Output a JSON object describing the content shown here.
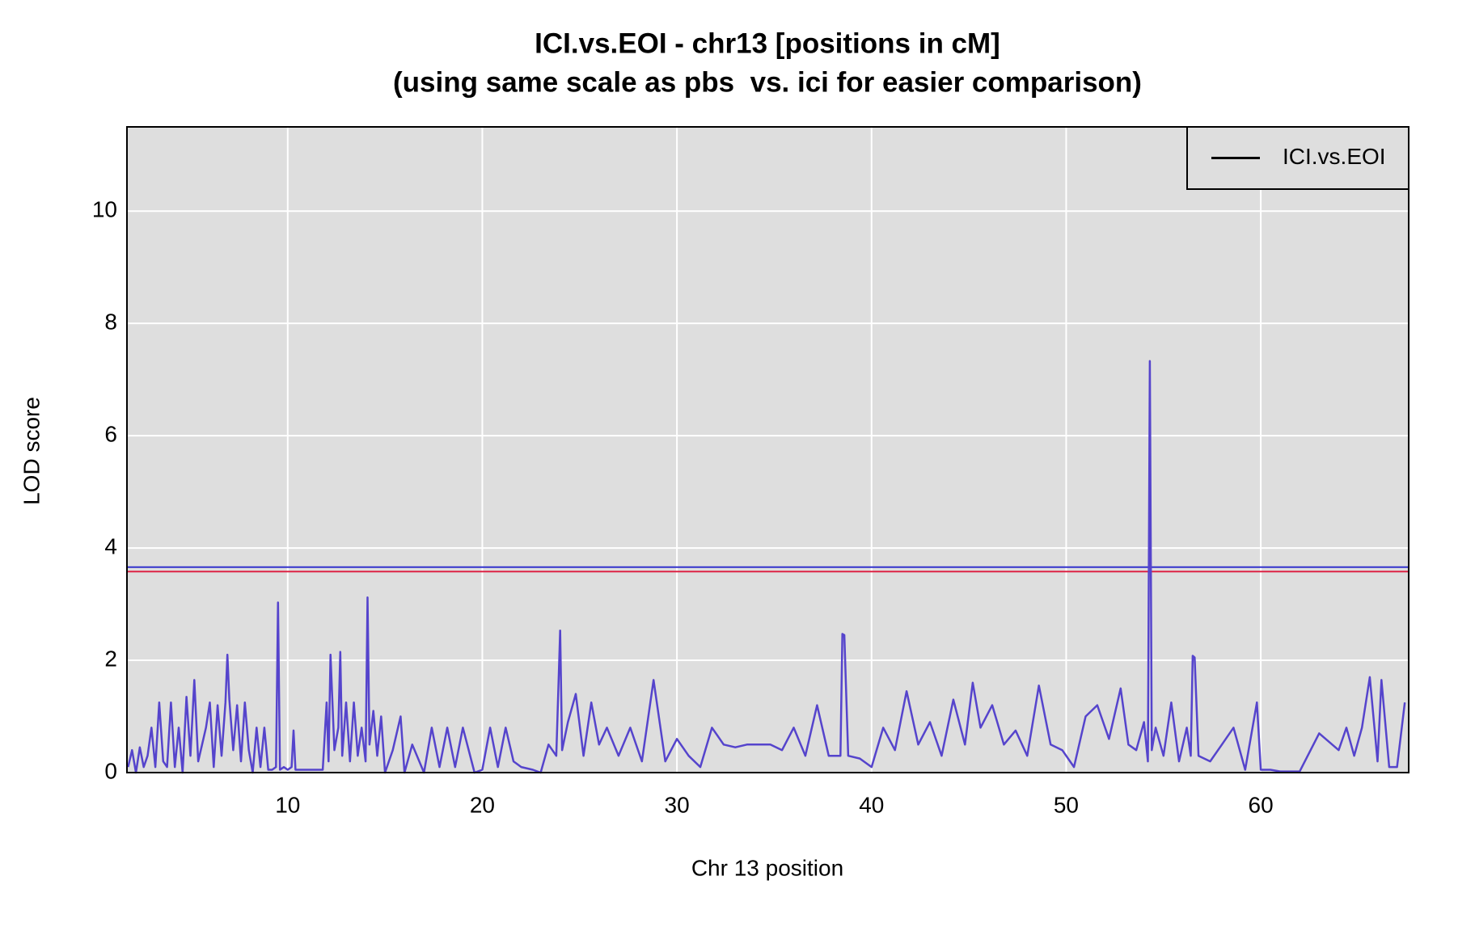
{
  "chart_data": {
    "type": "line",
    "title": "ICI.vs.EOI - chr13 [positions in cM]",
    "subtitle": "(using same scale as pbs  vs. ici for easier comparison)",
    "x_label": "Chr 13 position",
    "y_label": "LOD score",
    "x": [
      1.8,
      2.0,
      2.2,
      2.4,
      2.6,
      2.8,
      3.0,
      3.2,
      3.4,
      3.6,
      3.8,
      4.0,
      4.2,
      4.4,
      4.6,
      4.8,
      5.0,
      5.2,
      5.4,
      5.6,
      5.8,
      6.0,
      6.2,
      6.4,
      6.6,
      6.8,
      6.9,
      7.0,
      7.2,
      7.4,
      7.6,
      7.8,
      8.0,
      8.2,
      8.4,
      8.6,
      8.8,
      9.0,
      9.2,
      9.4,
      9.5,
      9.6,
      9.8,
      10.0,
      10.2,
      10.3,
      10.4,
      10.6,
      11.0,
      11.5,
      11.8,
      12.0,
      12.1,
      12.2,
      12.4,
      12.6,
      12.7,
      12.8,
      13.0,
      13.2,
      13.4,
      13.6,
      13.8,
      14.0,
      14.1,
      14.2,
      14.4,
      14.6,
      14.8,
      15.0,
      15.4,
      15.8,
      16.0,
      16.4,
      17.0,
      17.4,
      17.8,
      18.2,
      18.6,
      19.0,
      19.6,
      20.0,
      20.4,
      20.8,
      21.2,
      21.6,
      22.0,
      22.6,
      23.0,
      23.4,
      23.8,
      24.0,
      24.1,
      24.4,
      24.8,
      25.2,
      25.6,
      26.0,
      26.4,
      27.0,
      27.6,
      28.2,
      28.8,
      29.4,
      30.0,
      30.6,
      31.2,
      31.8,
      32.4,
      33.0,
      33.6,
      34.2,
      34.8,
      35.4,
      36.0,
      36.6,
      37.2,
      37.8,
      38.4,
      38.5,
      38.6,
      38.8,
      39.4,
      40.0,
      40.6,
      41.2,
      41.8,
      42.4,
      43.0,
      43.6,
      44.2,
      44.8,
      45.2,
      45.6,
      46.2,
      46.8,
      47.4,
      48.0,
      48.6,
      49.2,
      49.8,
      50.4,
      51.0,
      51.6,
      52.2,
      52.8,
      53.2,
      53.6,
      54.0,
      54.2,
      54.3,
      54.4,
      54.6,
      55.0,
      55.4,
      55.8,
      56.2,
      56.4,
      56.5,
      56.6,
      56.8,
      57.4,
      58.0,
      58.6,
      59.2,
      59.8,
      60.0,
      60.5,
      61.0,
      62.0,
      63.0,
      64.0,
      64.4,
      64.8,
      65.2,
      65.6,
      66.0,
      66.2,
      66.6,
      67.0,
      67.4
    ],
    "series": [
      {
        "name": "ICI.vs.EOI",
        "color": "#5544cc",
        "legend_color": "#000000",
        "values": [
          0.1,
          0.4,
          0.0,
          0.45,
          0.1,
          0.3,
          0.8,
          0.1,
          1.25,
          0.2,
          0.1,
          1.25,
          0.1,
          0.8,
          0.0,
          1.35,
          0.3,
          1.65,
          0.2,
          0.5,
          0.8,
          1.25,
          0.1,
          1.2,
          0.3,
          1.25,
          2.1,
          1.3,
          0.4,
          1.2,
          0.2,
          1.25,
          0.4,
          0.0,
          0.8,
          0.1,
          0.8,
          0.05,
          0.05,
          0.1,
          3.03,
          0.05,
          0.1,
          0.05,
          0.1,
          0.75,
          0.05,
          0.05,
          0.05,
          0.05,
          0.05,
          1.25,
          0.2,
          2.1,
          0.4,
          0.8,
          2.15,
          0.3,
          1.25,
          0.2,
          1.25,
          0.3,
          0.8,
          0.2,
          3.12,
          0.5,
          1.1,
          0.3,
          1.0,
          0.0,
          0.4,
          1.0,
          0.0,
          0.5,
          0.0,
          0.8,
          0.1,
          0.8,
          0.1,
          0.8,
          0.0,
          0.05,
          0.8,
          0.1,
          0.8,
          0.2,
          0.1,
          0.05,
          0.0,
          0.5,
          0.3,
          2.53,
          0.4,
          0.9,
          1.4,
          0.3,
          1.25,
          0.5,
          0.8,
          0.3,
          0.8,
          0.2,
          1.65,
          0.2,
          0.6,
          0.3,
          0.1,
          0.8,
          0.5,
          0.45,
          0.5,
          0.5,
          0.5,
          0.4,
          0.8,
          0.3,
          1.2,
          0.3,
          0.3,
          2.47,
          2.45,
          0.3,
          0.25,
          0.1,
          0.8,
          0.4,
          1.45,
          0.5,
          0.9,
          0.3,
          1.3,
          0.5,
          1.6,
          0.8,
          1.2,
          0.5,
          0.75,
          0.3,
          1.55,
          0.5,
          0.4,
          0.1,
          1.0,
          1.2,
          0.6,
          1.5,
          0.5,
          0.4,
          0.9,
          0.2,
          7.33,
          0.4,
          0.8,
          0.3,
          1.25,
          0.2,
          0.8,
          0.3,
          2.08,
          2.05,
          0.3,
          0.2,
          0.5,
          0.8,
          0.05,
          1.25,
          0.05,
          0.05,
          0.02,
          0.02,
          0.7,
          0.4,
          0.8,
          0.3,
          0.8,
          1.7,
          0.2,
          1.65,
          0.1,
          0.1,
          1.25
        ]
      }
    ],
    "thresholds": [
      {
        "value": 3.66,
        "color": "#3333cc"
      },
      {
        "value": 3.58,
        "color": "#dd2244"
      }
    ],
    "xlim": [
      1.74,
      67.6
    ],
    "ylim": [
      0,
      11.5
    ],
    "xticks": [
      10,
      20,
      30,
      40,
      50,
      60
    ],
    "yticks": [
      0,
      2,
      4,
      6,
      8,
      10
    ],
    "grid": true,
    "legend": "topright"
  }
}
